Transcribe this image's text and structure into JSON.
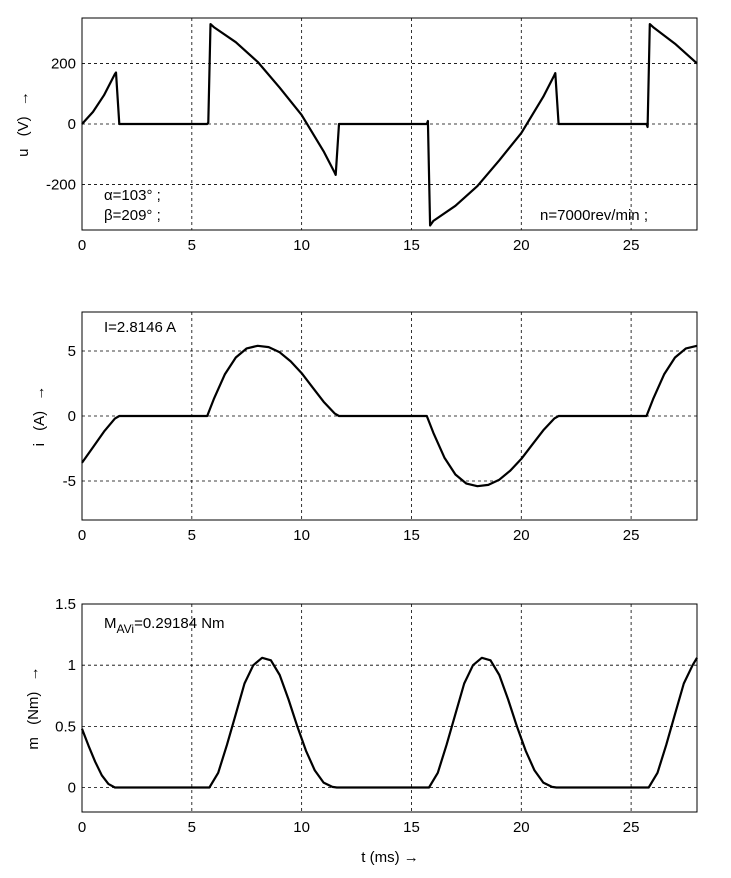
{
  "chart_data": [
    {
      "type": "line",
      "xlabel": "",
      "ylabel_parts": [
        "u",
        "(V)",
        "→"
      ],
      "xlim": [
        0,
        28
      ],
      "ylim": [
        -350,
        350
      ],
      "xticks": [
        0,
        5,
        10,
        15,
        20,
        25
      ],
      "yticks": [
        -200,
        0,
        200
      ],
      "grid": true,
      "annotations": {
        "alpha": "α=103° ;",
        "beta": "β=209° ;",
        "speed": "n=7000rev/min ;"
      },
      "series": [
        {
          "x": [
            0,
            0.5,
            1.0,
            1.5,
            1.55,
            1.7,
            2,
            3,
            4,
            5,
            5.7,
            5.75,
            5.85,
            6,
            7,
            8,
            9,
            10,
            11,
            11.5,
            11.55,
            11.7,
            12,
            13,
            14,
            15,
            15.7,
            15.75,
            15.85,
            16,
            17,
            18,
            19,
            20,
            21,
            21.5,
            21.55,
            21.7,
            22,
            23,
            24,
            25,
            25.7,
            25.75,
            25.85,
            26,
            27,
            28
          ],
          "y": [
            0,
            40,
            95,
            165,
            170,
            0,
            0,
            0,
            0,
            0,
            0,
            5,
            330,
            320,
            270,
            205,
            120,
            30,
            -90,
            -160,
            -168,
            0,
            0,
            0,
            0,
            0,
            0,
            10,
            -335,
            -320,
            -270,
            -205,
            -120,
            -30,
            90,
            160,
            168,
            0,
            0,
            0,
            0,
            0,
            0,
            -10,
            330,
            320,
            265,
            200
          ]
        }
      ]
    },
    {
      "type": "line",
      "xlabel": "",
      "ylabel_parts": [
        "i",
        "(A)",
        "→"
      ],
      "xlim": [
        0,
        28
      ],
      "ylim": [
        -8,
        8
      ],
      "xticks": [
        0,
        5,
        10,
        15,
        20,
        25
      ],
      "yticks": [
        -5,
        0,
        5
      ],
      "grid": true,
      "annotations": {
        "rms": "I=2.8146 A"
      },
      "series": [
        {
          "x": [
            0,
            0.5,
            1.0,
            1.5,
            1.7,
            3,
            4,
            5,
            5.7,
            6,
            6.5,
            7,
            7.5,
            8,
            8.5,
            9,
            9.5,
            10,
            10.5,
            11,
            11.5,
            11.7,
            13,
            14,
            15,
            15.7,
            16,
            16.5,
            17,
            17.5,
            18,
            18.5,
            19,
            19.5,
            20,
            20.5,
            21,
            21.5,
            21.7,
            23,
            24,
            25,
            25.7,
            26,
            26.5,
            27,
            27.5,
            28
          ],
          "y": [
            -3.6,
            -2.4,
            -1.2,
            -0.2,
            0,
            0,
            0,
            0,
            0,
            1.3,
            3.2,
            4.5,
            5.2,
            5.4,
            5.3,
            4.9,
            4.2,
            3.3,
            2.2,
            1.1,
            0.2,
            0,
            0,
            0,
            0,
            0,
            -1.3,
            -3.2,
            -4.5,
            -5.2,
            -5.4,
            -5.3,
            -4.9,
            -4.2,
            -3.3,
            -2.2,
            -1.1,
            -0.2,
            0,
            0,
            0,
            0,
            0,
            1.3,
            3.2,
            4.5,
            5.2,
            5.4
          ]
        }
      ]
    },
    {
      "type": "line",
      "xlabel": "t (ms) →",
      "ylabel_parts": [
        "m",
        "(Nm)",
        "→"
      ],
      "xlim": [
        0,
        28
      ],
      "ylim": [
        -0.2,
        1.5
      ],
      "xticks": [
        0,
        5,
        10,
        15,
        20,
        25
      ],
      "yticks": [
        0,
        0.5,
        1,
        1.5
      ],
      "grid": true,
      "annotations": {
        "avg_main": "M",
        "avg_sub": "AVi",
        "avg_value": "=0.29184 Nm"
      },
      "series": [
        {
          "x": [
            0,
            0.3,
            0.6,
            0.9,
            1.2,
            1.5,
            2,
            3,
            4,
            5,
            5.8,
            6.2,
            6.6,
            7,
            7.4,
            7.8,
            8.2,
            8.6,
            9,
            9.4,
            9.8,
            10.2,
            10.6,
            11,
            11.4,
            11.6,
            13,
            14,
            15,
            15.8,
            16.2,
            16.6,
            17,
            17.4,
            17.8,
            18.2,
            18.6,
            19,
            19.4,
            19.8,
            20.2,
            20.6,
            21,
            21.4,
            21.6,
            23,
            24,
            25,
            25.8,
            26.2,
            26.6,
            27,
            27.4,
            27.8,
            28
          ],
          "y": [
            0.48,
            0.34,
            0.21,
            0.1,
            0.03,
            0,
            0,
            0,
            0,
            0,
            0,
            0.12,
            0.35,
            0.6,
            0.85,
            1.0,
            1.06,
            1.04,
            0.92,
            0.72,
            0.5,
            0.3,
            0.14,
            0.04,
            0.005,
            0,
            0,
            0,
            0,
            0,
            0.12,
            0.35,
            0.6,
            0.85,
            1.0,
            1.06,
            1.04,
            0.92,
            0.72,
            0.5,
            0.3,
            0.14,
            0.04,
            0.005,
            0,
            0,
            0,
            0,
            0,
            0.12,
            0.35,
            0.6,
            0.85,
            1.0,
            1.06
          ]
        }
      ]
    }
  ]
}
